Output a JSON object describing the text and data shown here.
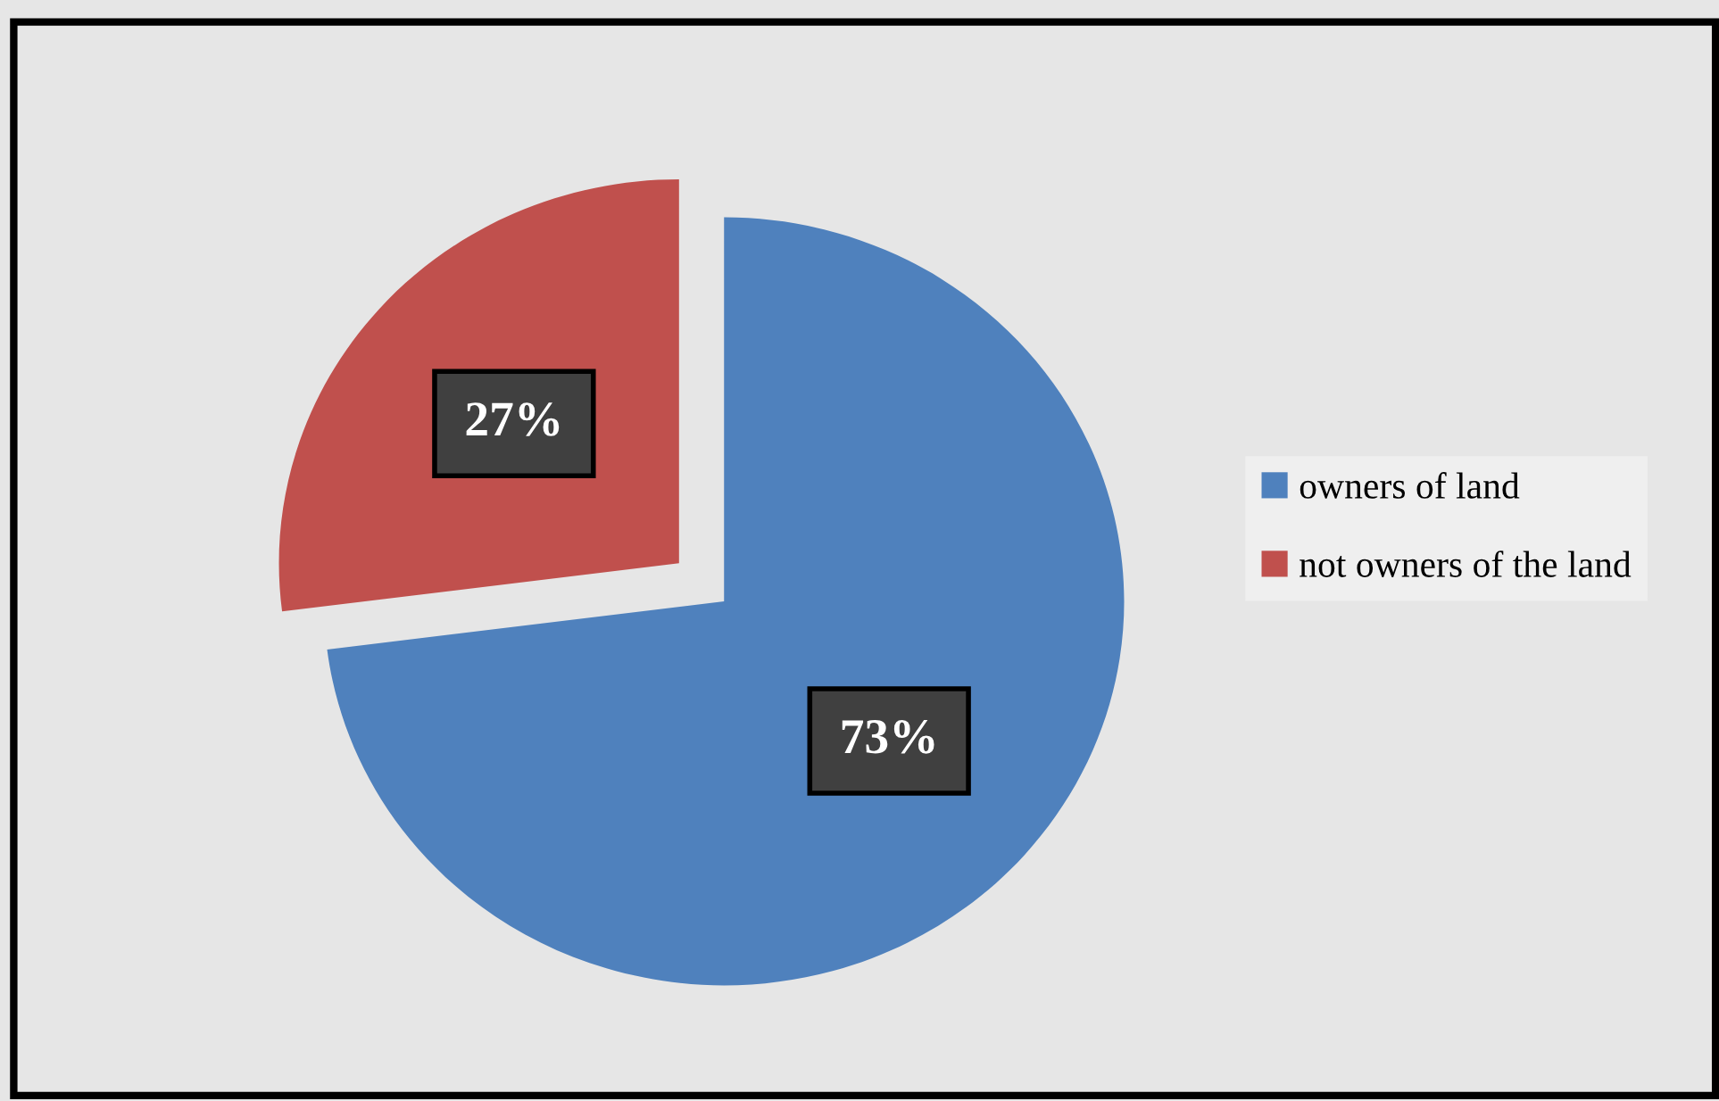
{
  "chart_data": {
    "type": "pie",
    "categories": [
      "owners of land",
      "not owners of the land"
    ],
    "values": [
      73,
      27
    ],
    "colors": [
      "#4f81bd",
      "#c0504d"
    ],
    "value_labels": [
      "73%",
      "27%"
    ],
    "legend": "right"
  }
}
